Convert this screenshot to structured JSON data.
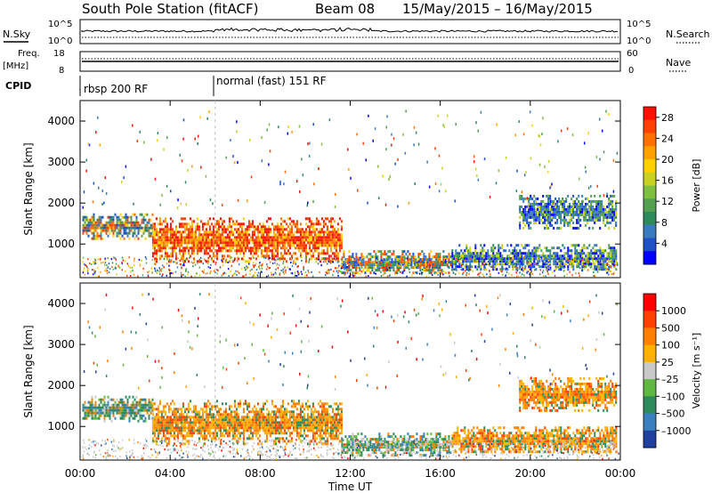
{
  "header": {
    "station": "South Pole Station (fitACF)",
    "beam": "Beam 08",
    "dates": "15/May/2015 – 16/May/2015"
  },
  "nsky_panel": {
    "left_label": "N.Sky",
    "right_label": "N.Search",
    "tick_top": "10^5",
    "tick_bottom": "10^0",
    "right_tick_top": "10^5",
    "right_tick_bottom": "10^0"
  },
  "freq_panel": {
    "left_label_1": "Freq.",
    "left_label_2": "[MHz]",
    "tick_top": "18",
    "tick_bottom": "8",
    "right_label": "Nave",
    "right_tick_top": "60",
    "right_tick_bottom": "0"
  },
  "cpid_panel": {
    "label": "CPID",
    "mode1": "rbsp 200 RF",
    "mode2": "normal (fast) 151 RF"
  },
  "chart_data": [
    {
      "type": "heatmap",
      "name": "power",
      "ylabel": "Slant Range [km]",
      "yticks": [
        "1000",
        "2000",
        "3000",
        "4000"
      ],
      "yrange": [
        180,
        4500
      ],
      "xrange": [
        0,
        24
      ],
      "colorbar": {
        "label": "Power [dB]",
        "ticks": [
          "4",
          "8",
          "12",
          "16",
          "20",
          "24",
          "28"
        ],
        "colors": [
          "#0000ff",
          "#1e50c8",
          "#3a7abf",
          "#2e8a5a",
          "#54a050",
          "#7fbf3f",
          "#c8d020",
          "#ffd000",
          "#ffa000",
          "#ff7000",
          "#ff4000",
          "#ff1000"
        ]
      },
      "echo_regions": [
        {
          "t0": 0.1,
          "t1": 3.2,
          "r0": 1150,
          "r1": 1750,
          "level": "medium"
        },
        {
          "t0": 3.2,
          "t1": 11.6,
          "r0": 600,
          "r1": 1650,
          "level": "high"
        },
        {
          "t0": 11.6,
          "t1": 16.5,
          "r0": 300,
          "r1": 850,
          "level": "medium"
        },
        {
          "t0": 16.5,
          "t1": 23.8,
          "r0": 350,
          "r1": 1000,
          "level": "low"
        },
        {
          "t0": 19.5,
          "t1": 23.8,
          "r0": 1400,
          "r1": 2200,
          "level": "low"
        }
      ]
    },
    {
      "type": "heatmap",
      "name": "velocity",
      "ylabel": "Slant Range [km]",
      "yticks": [
        "1000",
        "2000",
        "3000",
        "4000"
      ],
      "yrange": [
        180,
        4500
      ],
      "xrange": [
        0,
        24
      ],
      "xticks": [
        "00:00",
        "04:00",
        "08:00",
        "12:00",
        "16:00",
        "20:00",
        "00:00"
      ],
      "xlabel": "Time UT",
      "colorbar": {
        "label": "Velocity [m s⁻¹]",
        "ticks": [
          "1000",
          "500",
          "100",
          "25",
          "–25",
          "–100",
          "–500",
          "–1000"
        ],
        "colors": [
          "#2040a0",
          "#3a80c0",
          "#2e8a5a",
          "#60b840",
          "#c8c8c8",
          "#ffb000",
          "#ff8000",
          "#ff4000",
          "#ff0000"
        ]
      },
      "echo_regions": [
        {
          "t0": 0.1,
          "t1": 3.2,
          "r0": 1150,
          "r1": 1750,
          "level": "green"
        },
        {
          "t0": 3.2,
          "t1": 11.6,
          "r0": 600,
          "r1": 1650,
          "level": "orange"
        },
        {
          "t0": 11.6,
          "t1": 16.5,
          "r0": 300,
          "r1": 850,
          "level": "green"
        },
        {
          "t0": 16.5,
          "t1": 23.8,
          "r0": 350,
          "r1": 1000,
          "level": "orange"
        },
        {
          "t0": 19.5,
          "t1": 23.8,
          "r0": 1400,
          "r1": 2200,
          "level": "orange"
        }
      ]
    }
  ]
}
